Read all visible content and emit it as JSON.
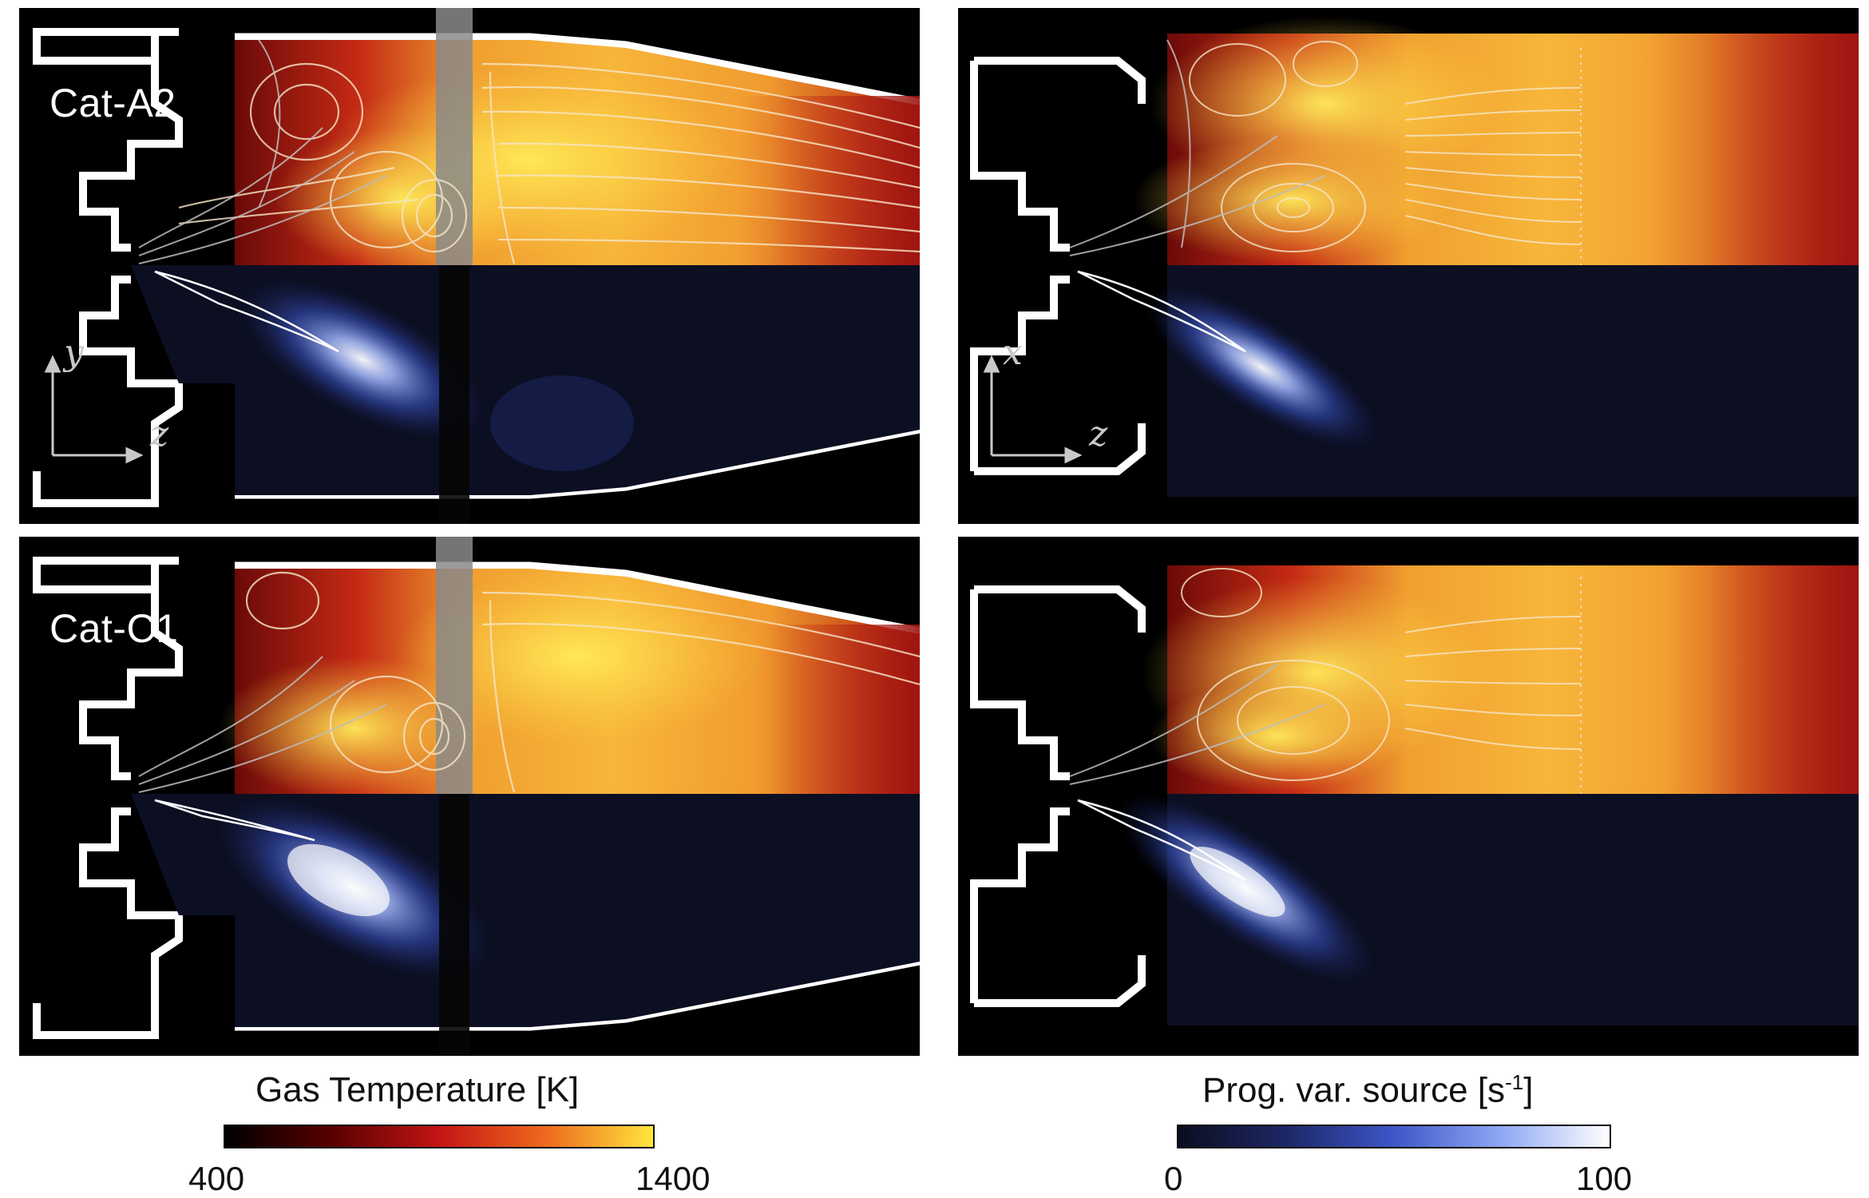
{
  "panels": {
    "top_left": {
      "case_label": "Cat-A2",
      "axis_vertical": "y",
      "axis_horizontal": "z"
    },
    "top_right": {
      "axis_vertical": "x",
      "axis_horizontal": "z"
    },
    "bottom_left": {
      "case_label": "Cat-C1"
    },
    "bottom_right": {}
  },
  "colorbars": {
    "temperature": {
      "title": "Gas Temperature [K]",
      "min_label": "400",
      "max_label": "1400",
      "colors": [
        "#000000",
        "#5a0000",
        "#c41414",
        "#ee6a1e",
        "#ffe63c"
      ]
    },
    "source": {
      "title_prefix": "Prog. var. source [s",
      "title_exp": "-1",
      "title_suffix": "]",
      "min_label": "0",
      "max_label": "100",
      "colors": [
        "#0b0d1e",
        "#1d2766",
        "#3d56c8",
        "#8fa8f4",
        "#ffffff"
      ]
    }
  }
}
